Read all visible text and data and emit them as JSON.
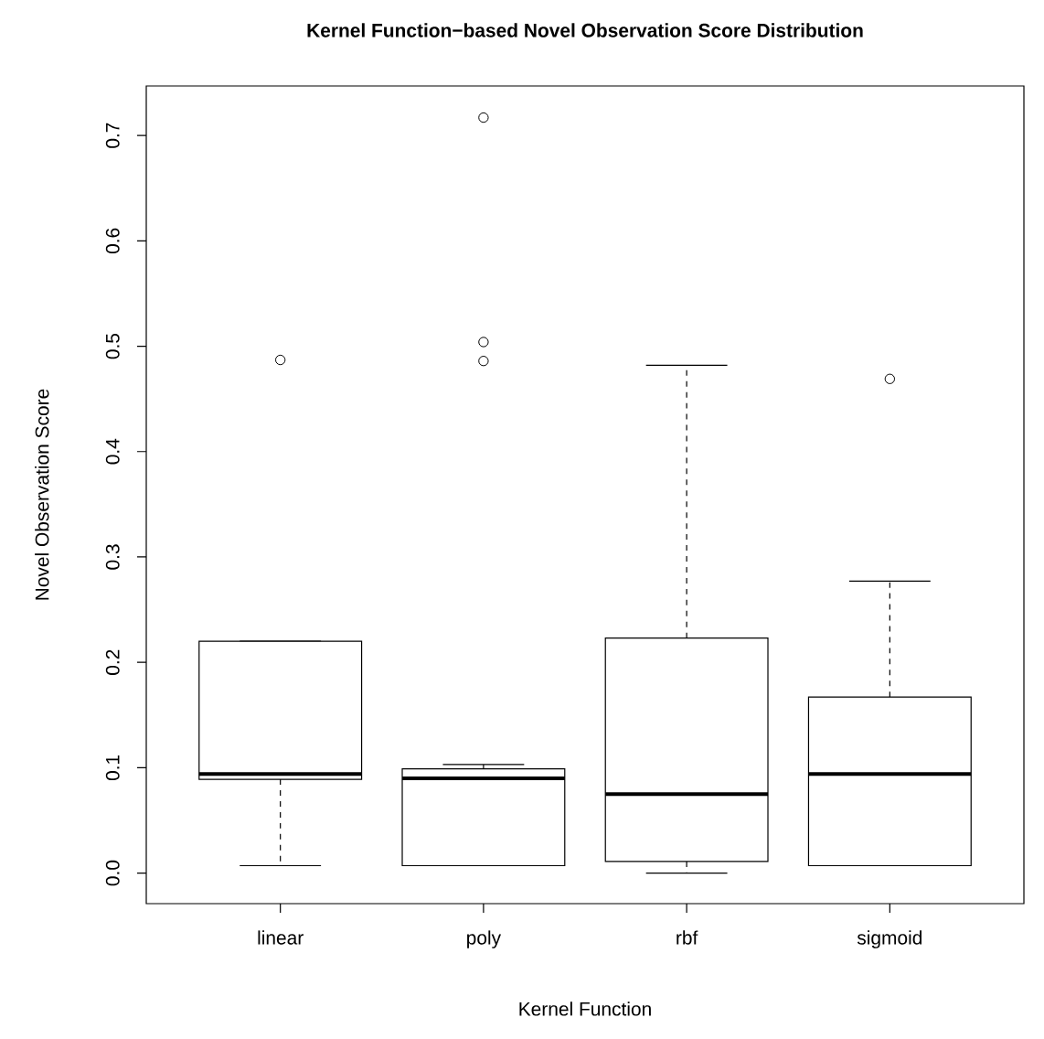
{
  "chart_data": {
    "type": "box",
    "title": "Kernel Function−based Novel Observation Score Distribution",
    "xlabel": "Kernel Function",
    "ylabel": "Novel Observation Score",
    "categories": [
      "linear",
      "poly",
      "rbf",
      "sigmoid"
    ],
    "boxes": [
      {
        "low": 0.007,
        "q1": 0.089,
        "median": 0.094,
        "q3": 0.22,
        "high": 0.22,
        "outliers": [
          0.487
        ]
      },
      {
        "low": 0.007,
        "q1": 0.007,
        "median": 0.09,
        "q3": 0.099,
        "high": 0.103,
        "outliers": [
          0.717,
          0.504,
          0.486
        ]
      },
      {
        "low": 0.0,
        "q1": 0.011,
        "median": 0.075,
        "q3": 0.223,
        "high": 0.482
      },
      {
        "low": 0.007,
        "q1": 0.007,
        "median": 0.094,
        "q3": 0.167,
        "high": 0.277,
        "outliers": [
          0.469
        ]
      }
    ],
    "ylim": [
      -0.029,
      0.747
    ],
    "yticks": [
      {
        "value": 0,
        "label": "0.0"
      },
      0.1,
      0.2,
      0.3,
      0.4,
      0.5,
      0.6,
      0.7
    ]
  }
}
